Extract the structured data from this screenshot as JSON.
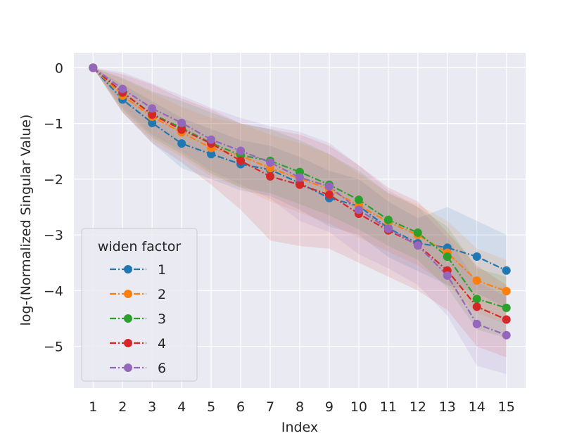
{
  "chart_data": {
    "type": "line",
    "title": "",
    "xlabel": "Index",
    "ylabel": "log-(Normalized Singular Value)",
    "x": [
      1,
      2,
      3,
      4,
      5,
      6,
      7,
      8,
      9,
      10,
      11,
      12,
      13,
      14,
      15
    ],
    "xlim": [
      0.35,
      15.65
    ],
    "ylim": [
      -5.75,
      0.27
    ],
    "y_ticks": [
      0,
      -1,
      -2,
      -3,
      -4,
      -5
    ],
    "y_tick_labels": [
      "0",
      "−1",
      "−2",
      "−3",
      "−4",
      "−5"
    ],
    "x_tick_labels": [
      "1",
      "2",
      "3",
      "4",
      "5",
      "6",
      "7",
      "8",
      "9",
      "10",
      "11",
      "12",
      "13",
      "14",
      "15"
    ],
    "grid": true,
    "legend": {
      "title": "widen factor",
      "position": "lower-left"
    },
    "series": [
      {
        "name": "1",
        "color": "#1f77b4",
        "values": [
          0,
          -0.57,
          -0.99,
          -1.36,
          -1.55,
          -1.73,
          -1.83,
          -2.07,
          -2.34,
          -2.48,
          -2.88,
          -3.15,
          -3.23,
          -3.39,
          -3.64
        ],
        "band_upper": [
          0,
          -0.3,
          -0.6,
          -0.9,
          -1.1,
          -1.3,
          -1.4,
          -1.6,
          -1.85,
          -2.0,
          -2.4,
          -2.7,
          -2.5,
          -2.75,
          -3.0
        ],
        "band_lower": [
          0,
          -0.8,
          -1.35,
          -1.8,
          -2.0,
          -2.2,
          -2.3,
          -2.55,
          -2.85,
          -3.0,
          -3.4,
          -3.65,
          -3.9,
          -4.05,
          -4.3
        ]
      },
      {
        "name": "2",
        "color": "#ff7f0e",
        "values": [
          0,
          -0.5,
          -0.88,
          -1.16,
          -1.44,
          -1.58,
          -1.8,
          -1.99,
          -2.18,
          -2.47,
          -2.77,
          -3.0,
          -3.32,
          -3.82,
          -4.01
        ],
        "band_upper": [
          0,
          -0.2,
          -0.45,
          -0.7,
          -0.9,
          -1.0,
          -1.2,
          -1.35,
          -1.55,
          -1.9,
          -2.25,
          -2.45,
          -2.75,
          -3.25,
          -3.45
        ],
        "band_lower": [
          0,
          -0.8,
          -1.3,
          -1.6,
          -1.95,
          -2.15,
          -2.4,
          -2.6,
          -2.8,
          -3.05,
          -3.3,
          -3.55,
          -3.9,
          -4.4,
          -4.6
        ]
      },
      {
        "name": "3",
        "color": "#2ca02c",
        "values": [
          0,
          -0.45,
          -0.83,
          -1.08,
          -1.35,
          -1.57,
          -1.67,
          -1.87,
          -2.1,
          -2.37,
          -2.73,
          -2.96,
          -3.39,
          -4.15,
          -4.31
        ],
        "band_upper": [
          0,
          -0.18,
          -0.42,
          -0.6,
          -0.8,
          -1.0,
          -1.1,
          -1.3,
          -1.55,
          -1.85,
          -2.25,
          -2.5,
          -2.85,
          -3.6,
          -3.75
        ],
        "band_lower": [
          0,
          -0.75,
          -1.25,
          -1.55,
          -1.9,
          -2.15,
          -2.25,
          -2.45,
          -2.65,
          -2.9,
          -3.2,
          -3.45,
          -3.95,
          -4.7,
          -4.85
        ]
      },
      {
        "name": "4",
        "color": "#d62728",
        "values": [
          0,
          -0.44,
          -0.84,
          -1.11,
          -1.36,
          -1.67,
          -1.95,
          -2.1,
          -2.28,
          -2.62,
          -2.92,
          -3.18,
          -3.64,
          -4.29,
          -4.52
        ],
        "band_upper": [
          0,
          -0.12,
          -0.3,
          -0.55,
          -0.75,
          -1.0,
          -1.1,
          -1.2,
          -1.4,
          -1.75,
          -2.15,
          -2.4,
          -2.95,
          -3.55,
          -3.9
        ],
        "band_lower": [
          0,
          -0.8,
          -1.35,
          -1.7,
          -2.1,
          -2.55,
          -3.1,
          -3.2,
          -3.25,
          -3.5,
          -3.75,
          -4.0,
          -4.35,
          -5.0,
          -5.2
        ]
      },
      {
        "name": "6",
        "color": "#9467bd",
        "values": [
          0,
          -0.38,
          -0.73,
          -0.99,
          -1.29,
          -1.49,
          -1.7,
          -1.97,
          -2.13,
          -2.55,
          -2.89,
          -3.19,
          -3.73,
          -4.6,
          -4.8
        ],
        "band_upper": [
          0,
          -0.08,
          -0.28,
          -0.5,
          -0.72,
          -0.9,
          -1.05,
          -1.15,
          -1.35,
          -1.75,
          -2.2,
          -2.5,
          -3.05,
          -3.85,
          -4.1
        ],
        "band_lower": [
          0,
          -0.7,
          -1.2,
          -1.5,
          -1.85,
          -2.1,
          -2.35,
          -2.75,
          -2.95,
          -3.35,
          -3.6,
          -3.9,
          -4.45,
          -5.35,
          -5.5
        ]
      }
    ]
  }
}
